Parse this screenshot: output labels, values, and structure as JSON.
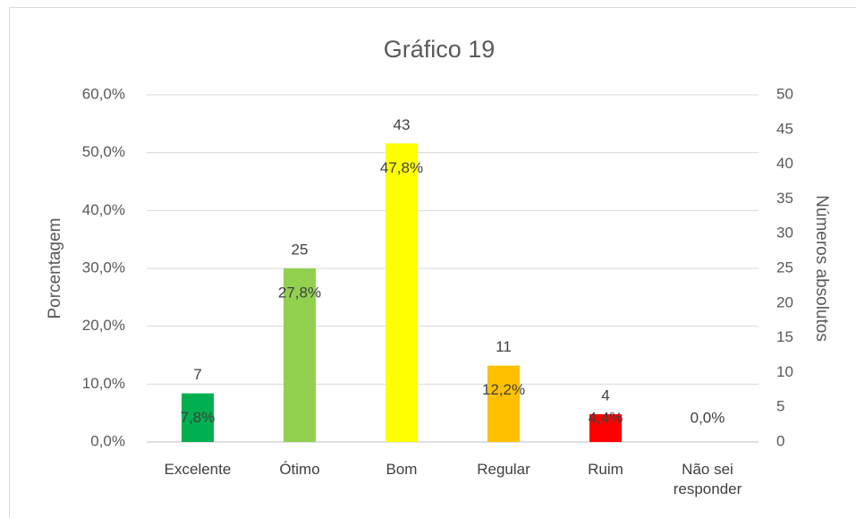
{
  "chart_data": {
    "type": "bar",
    "title": "Gráfico 19",
    "ylabel": "Porcentagem",
    "y2label": "Números absolutos",
    "categories": [
      "Excelente",
      "Ótimo",
      "Bom",
      "Regular",
      "Ruim",
      "Não sei responder"
    ],
    "series": [
      {
        "values": [
          7,
          25,
          43,
          11,
          4,
          0
        ],
        "colors": [
          "#00b050",
          "#92d050",
          "#ffff00",
          "#ffc000",
          "#ff0000",
          "#c00000"
        ],
        "axis": "y2"
      },
      {
        "values": [
          7.8,
          27.8,
          47.8,
          12.2,
          4.4,
          0.0
        ],
        "value_labels": [
          "7,8%",
          "27,8%",
          "47,8%",
          "12,2%",
          "4,4%",
          "0,0%"
        ],
        "axis": "y"
      }
    ],
    "ylim": [
      0,
      60
    ],
    "yticks": [
      {
        "value": 0,
        "label": "0,0%"
      },
      {
        "value": 10,
        "label": "10,0%"
      },
      {
        "value": 20,
        "label": "20,0%"
      },
      {
        "value": 30,
        "label": "30,0%"
      },
      {
        "value": 40,
        "label": "40,0%"
      },
      {
        "value": 50,
        "label": "50,0%"
      },
      {
        "value": 60,
        "label": "60,0%"
      }
    ],
    "y2lim": [
      0,
      50
    ],
    "y2ticks": [
      0,
      5,
      10,
      15,
      20,
      25,
      30,
      35,
      40,
      45,
      50
    ],
    "grid": true
  }
}
